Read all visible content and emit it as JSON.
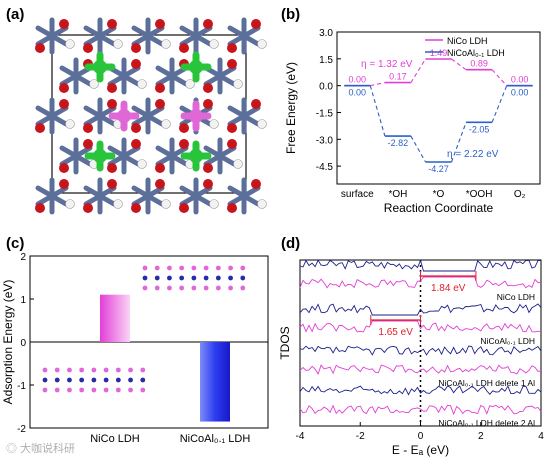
{
  "panels": {
    "a": {
      "label": "(a)"
    },
    "b": {
      "label": "(b)"
    },
    "c": {
      "label": "(c)"
    },
    "d": {
      "label": "(d)"
    }
  },
  "watermark": "大咖说科研",
  "colors": {
    "nico": "#e23ed6",
    "nicoal": "#2c5fc9",
    "nicoal_dark": "#1e1e8c",
    "annotation_red": "#e0202a",
    "bond_blue": "#5c6f9a",
    "oxygen": "#c7161b",
    "hydrogen": "#f2f2f2",
    "green_atom": "#28c43a",
    "pink_atom": "#e067d6"
  },
  "chart_data": [
    {
      "id": "b",
      "type": "line",
      "categories": [
        "surface",
        "*OH",
        "*O",
        "*OOH",
        "O₂"
      ],
      "xlabel": "Reaction Coordinate",
      "ylabel": "Free Energy (eV)",
      "ylim": [
        -5.5,
        3.0
      ],
      "yticks": [
        "3.0",
        "1.5",
        "0.0",
        "-1.5",
        "-3.0",
        "-4.5"
      ],
      "series": [
        {
          "name": "NiCo LDH",
          "values": [
            0.0,
            0.17,
            1.49,
            0.89,
            0.0
          ],
          "labels": [
            "0.00",
            "0.17",
            "1.49",
            "0.89",
            "0.00"
          ]
        },
        {
          "name": "NiCoAl₀.₁ LDH",
          "values": [
            0.0,
            -2.82,
            -4.27,
            -2.05,
            0.0
          ],
          "labels": [
            "0.00",
            "-2.82",
            "-4.27",
            "-2.05",
            "0.00"
          ]
        }
      ],
      "annotations": [
        "η = 1.32 eV",
        "η = 2.22 eV"
      ],
      "legend": "top-right"
    },
    {
      "id": "c",
      "type": "bar",
      "categories": [
        "NiCo LDH",
        "NiCoAl₀.₁ LDH"
      ],
      "values": [
        1.1,
        -1.85
      ],
      "ylabel": "Adsorption Energy (eV)",
      "ylim": [
        -2,
        2
      ],
      "yticks": [
        "2",
        "1",
        "0",
        "-1",
        "-2"
      ]
    },
    {
      "id": "d",
      "type": "line",
      "xlabel": "E - Eₐ (eV)",
      "ylabel": "TDOS",
      "xlim": [
        -4,
        4
      ],
      "xticks": [
        "-4",
        "-2",
        "0",
        "2",
        "4"
      ],
      "curve_labels": [
        "NiCo LDH",
        "NiCoAl₀.₁ LDH",
        "NiCoAl₀.₁ LDH delete 1 Al",
        "NiCoAl₀.₁ LDH delete 2 Al"
      ],
      "gap_labels": [
        "1.84 eV",
        "1.65 eV"
      ],
      "gaps": [
        {
          "from": 0.0,
          "to": 1.84
        },
        {
          "from": -1.65,
          "to": 0.0
        }
      ]
    }
  ]
}
